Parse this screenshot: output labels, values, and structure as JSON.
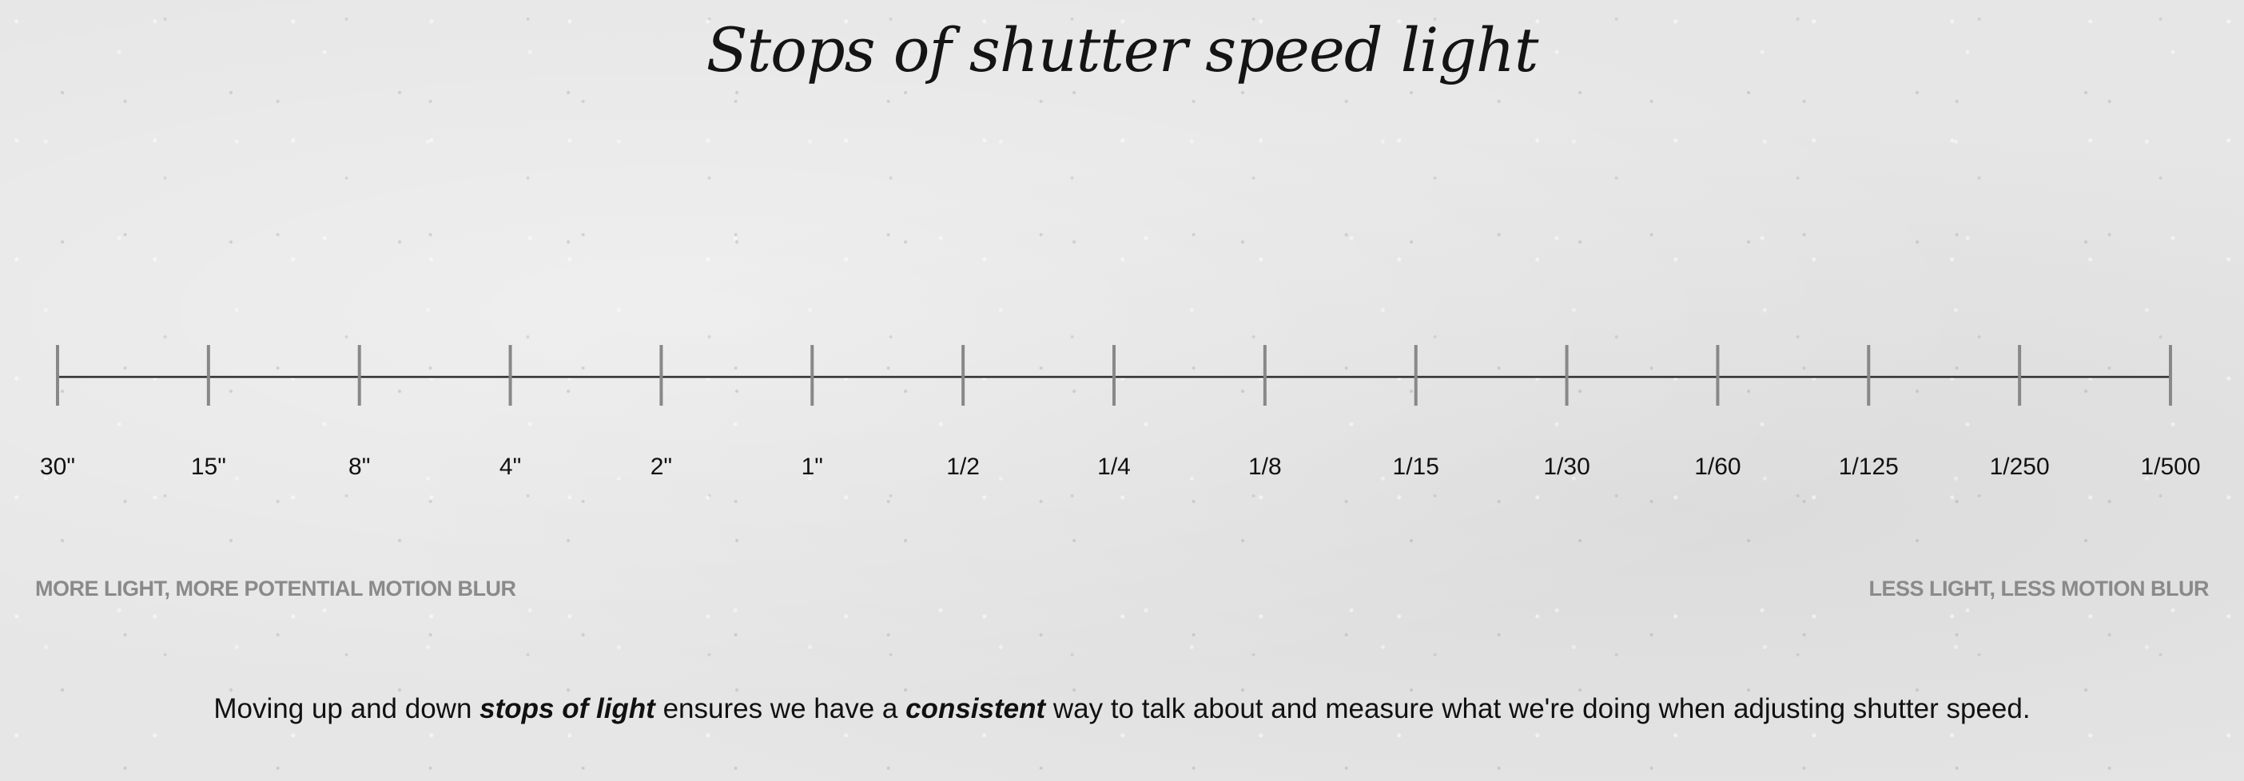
{
  "title": "Stops of shutter speed light",
  "scale": {
    "stops": [
      "30\"",
      "15\"",
      "8\"",
      "4\"",
      "2\"",
      "1\"",
      "1/2",
      "1/4",
      "1/8",
      "1/15",
      "1/30",
      "1/60",
      "1/125",
      "1/250",
      "1/500"
    ]
  },
  "left_note": "MORE LIGHT, MORE POTENTIAL MOTION BLUR",
  "right_note": "LESS LIGHT, LESS MOTION BLUR",
  "caption": {
    "part1": "Moving up and down ",
    "em1": "stops of light",
    "part2": " ensures we have a ",
    "em2": "consistent",
    "part3": " way to talk about and measure what we're doing when adjusting shutter speed."
  },
  "colors": {
    "background": "#e6e6e6",
    "text": "#111111",
    "muted": "#8a8a8a",
    "tick": "#888888"
  }
}
